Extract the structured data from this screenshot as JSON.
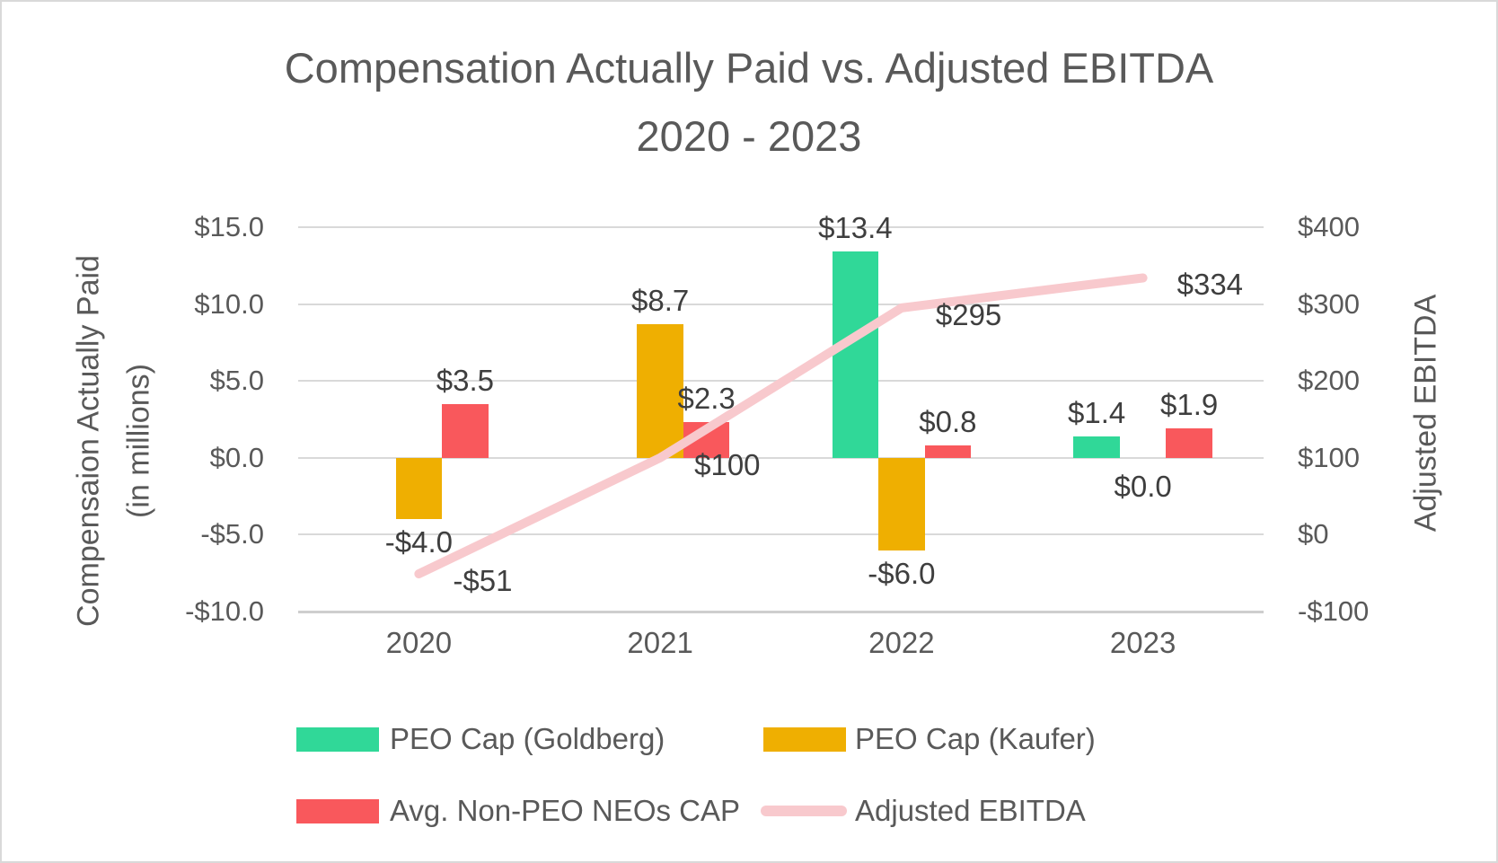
{
  "title": {
    "line1": "Compensation Actually Paid vs. Adjusted EBITDA",
    "line2": "2020 - 2023"
  },
  "colors": {
    "green": "#30d898",
    "gold": "#efaf01",
    "red": "#f9585c",
    "pink": "#f8c9cd",
    "grid": "#d9d9d9",
    "axis_text": "#595959",
    "data_label_text": "#3e3e3e"
  },
  "chart_data": {
    "type": "combo-bar-line",
    "categories": [
      "2020",
      "2021",
      "2022",
      "2023"
    ],
    "series": [
      {
        "name": "PEO Cap (Goldberg)",
        "type": "bar",
        "color_key": "green",
        "axis": "left",
        "values": [
          null,
          null,
          13.4,
          1.4
        ],
        "labels": [
          null,
          null,
          "$13.4",
          "$1.4"
        ]
      },
      {
        "name": "PEO Cap (Kaufer)",
        "type": "bar",
        "color_key": "gold",
        "axis": "left",
        "values": [
          -4.0,
          8.7,
          -6.0,
          0.0
        ],
        "labels": [
          "-$4.0",
          "$8.7",
          "-$6.0",
          "$0.0"
        ]
      },
      {
        "name": "Avg. Non-PEO NEOs CAP",
        "type": "bar",
        "color_key": "red",
        "axis": "left",
        "values": [
          3.5,
          2.3,
          0.8,
          1.9
        ],
        "labels": [
          "$3.5",
          "$2.3",
          "$0.8",
          "$1.9"
        ]
      },
      {
        "name": "Adjusted EBITDA",
        "type": "line",
        "color_key": "pink",
        "axis": "right",
        "values": [
          -51,
          100,
          295,
          334
        ],
        "labels": [
          "-$51",
          "$100",
          "$295",
          "$334"
        ]
      }
    ],
    "left_axis": {
      "title_line1": "Compensaion Actually Paid",
      "title_line2": "(in millions)",
      "ticks": [
        "$15.0",
        "$10.0",
        "$5.0",
        "$0.0",
        "-$5.0",
        "-$10.0"
      ],
      "values": [
        15,
        10,
        5,
        0,
        -5,
        -10
      ],
      "range": [
        -10,
        15
      ]
    },
    "right_axis": {
      "title": "Adjusted EBITDA",
      "ticks": [
        "$400",
        "$300",
        "$200",
        "$100",
        "$0",
        "-$100"
      ],
      "values": [
        400,
        300,
        200,
        100,
        0,
        -100
      ],
      "range": [
        -100,
        400
      ]
    },
    "grid": true,
    "legend_position": "bottom"
  },
  "legend": {
    "items": [
      {
        "label": "PEO Cap (Goldberg)",
        "color_key": "green",
        "marker": "rect"
      },
      {
        "label": "PEO Cap (Kaufer)",
        "color_key": "gold",
        "marker": "rect"
      },
      {
        "label": "Avg. Non-PEO NEOs CAP",
        "color_key": "red",
        "marker": "rect"
      },
      {
        "label": "Adjusted EBITDA",
        "color_key": "pink",
        "marker": "line"
      }
    ]
  }
}
